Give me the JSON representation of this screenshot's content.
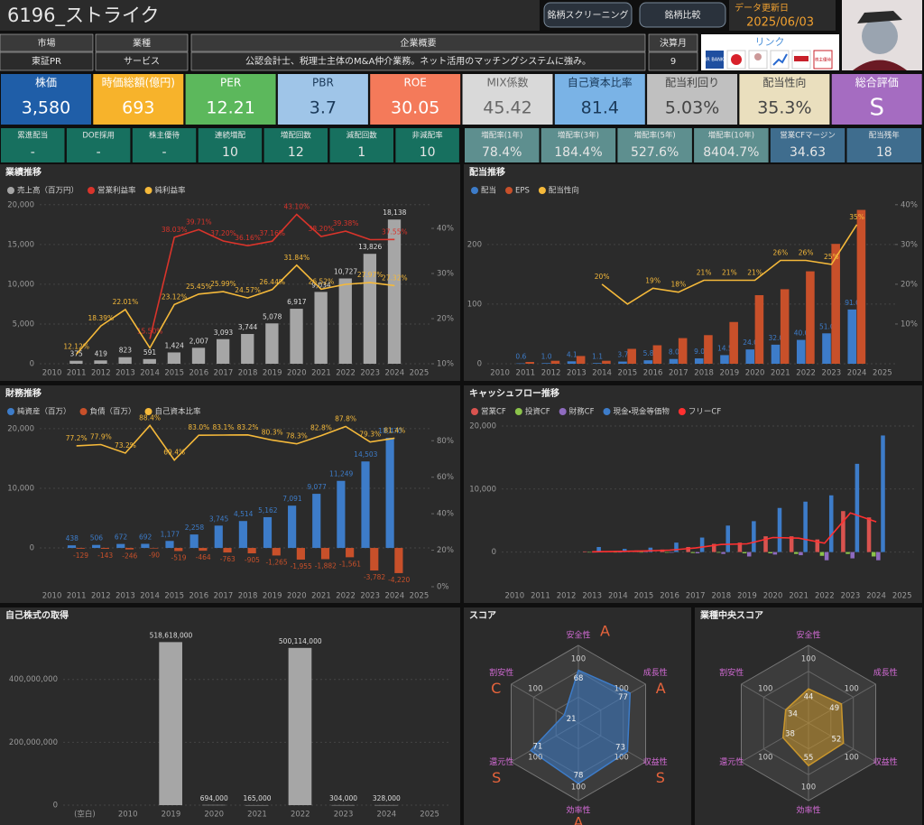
{
  "header": {
    "title": "6196_ストライク",
    "buttons": [
      "銘柄スクリーニング",
      "銘柄比較"
    ],
    "update_label": "データ更新日",
    "update_date": "2025/06/03"
  },
  "info": [
    {
      "label": "市場",
      "value": "東証PR"
    },
    {
      "label": "業種",
      "value": "サービス"
    },
    {
      "label": "企業概要",
      "value": "公認会計士、税理士主体のM&A仲介業務。ネット活用のマッチングシステムに強み。"
    },
    {
      "label": "決算月",
      "value": "9"
    }
  ],
  "links": {
    "label": "リンク",
    "icons": [
      "IR BANK",
      "株主優待"
    ]
  },
  "kpis": [
    {
      "label": "株価",
      "value": "3,580",
      "color": "#1f5ea8",
      "text": "#ffffff"
    },
    {
      "label": "時価総額(億円)",
      "value": "693",
      "color": "#f7b32b",
      "text": "#ffffff"
    },
    {
      "label": "PER",
      "value": "12.21",
      "color": "#5cb85c",
      "text": "#ffffff"
    },
    {
      "label": "PBR",
      "value": "3.7",
      "color": "#9fc5e8",
      "text": "#1b3a5a"
    },
    {
      "label": "ROE",
      "value": "30.05",
      "color": "#f47a5a",
      "text": "#ffffff"
    },
    {
      "label": "MIX係数",
      "value": "45.42",
      "color": "#d9d9d9",
      "text": "#666666"
    },
    {
      "label": "自己資本比率",
      "value": "81.4",
      "color": "#7ab3e6",
      "text": "#1b3a5a"
    },
    {
      "label": "配当利回り",
      "value": "5.03%",
      "color": "#c0c0c0",
      "text": "#444444"
    },
    {
      "label": "配当性向",
      "value": "35.3%",
      "color": "#eadfbe",
      "text": "#444444"
    },
    {
      "label": "総合評価",
      "value": "S",
      "color": "#a56cc1",
      "text": "#ffffff"
    }
  ],
  "stats": [
    {
      "label": "累進配当",
      "value": "-",
      "color": "#17705f"
    },
    {
      "label": "DOE採用",
      "value": "-",
      "color": "#17705f"
    },
    {
      "label": "株主優待",
      "value": "-",
      "color": "#17705f"
    },
    {
      "label": "連続増配",
      "value": "10",
      "color": "#17705f"
    },
    {
      "label": "増配回数",
      "value": "12",
      "color": "#17705f"
    },
    {
      "label": "減配回数",
      "value": "1",
      "color": "#17705f"
    },
    {
      "label": "非減配率",
      "value": "10",
      "color": "#17705f"
    },
    {
      "label": "増配率(1年)",
      "value": "78.4%",
      "color": "#5e8f8f"
    },
    {
      "label": "増配率(3年)",
      "value": "184.4%",
      "color": "#5e8f8f"
    },
    {
      "label": "増配率(5年)",
      "value": "527.6%",
      "color": "#5e8f8f"
    },
    {
      "label": "増配率(10年)",
      "value": "8404.7%",
      "color": "#5e8f8f"
    },
    {
      "label": "営業CFマージン",
      "value": "34.63",
      "color": "#3f6d8e"
    },
    {
      "label": "配当残年",
      "value": "18",
      "color": "#3f6d8e"
    }
  ],
  "chart_data": [
    {
      "type": "combo",
      "title": "業績推移",
      "categories": [
        "2010",
        "2011",
        "2012",
        "2013",
        "2014",
        "2015",
        "2016",
        "2017",
        "2018",
        "2019",
        "2020",
        "2021",
        "2022",
        "2023",
        "2024",
        "2025"
      ],
      "series": [
        {
          "name": "売上高（百万円）",
          "color": "#a6a6a6",
          "kind": "bar",
          "values": [
            null,
            375,
            419,
            823,
            591,
            1424,
            2007,
            3093,
            3744,
            5078,
            6917,
            9034,
            10727,
            13826,
            18138,
            null
          ],
          "value_labels": [
            null,
            "375",
            "419",
            "823",
            "591",
            "1,424",
            "2,007",
            "3,093",
            "3,744",
            "5,078",
            "6,917",
            "9,034",
            "10,727",
            "13,826",
            "18,138",
            null
          ]
        },
        {
          "name": "営業利益率",
          "color": "#d9342b",
          "kind": "line",
          "axis": "y2",
          "values": [
            null,
            null,
            null,
            null,
            15.5,
            38.03,
            39.71,
            37.2,
            36.16,
            37.16,
            43.1,
            38.2,
            39.38,
            37.5,
            37.55,
            null
          ],
          "value_labels": [
            null,
            null,
            null,
            null,
            "15.50%",
            "38.03%",
            "39.71%",
            "37.20%",
            "36.16%",
            "37.16%",
            "43.10%",
            "38.20%",
            "39.38%",
            null,
            "37.55%",
            null
          ]
        },
        {
          "name": "純利益率",
          "color": "#f5b93a",
          "kind": "line",
          "axis": "y2",
          "values": [
            null,
            12.12,
            18.39,
            22.01,
            13.5,
            23.12,
            25.45,
            25.99,
            24.57,
            26.44,
            31.84,
            26.52,
            27.6,
            27.97,
            27.32,
            null
          ],
          "value_labels": [
            null,
            "12.12%",
            "18.39%",
            "22.01%",
            null,
            "23.12%",
            "25.45%",
            "25.99%",
            "24.57%",
            "26.44%",
            "31.84%",
            "26.52%",
            null,
            "27.97%",
            "27.32%",
            null
          ]
        }
      ],
      "ylim": [
        0,
        21000
      ],
      "yticks": [
        0,
        {
          "value": 5000,
          "label": "5,000"
        },
        {
          "value": 10000,
          "label": "10,000"
        },
        {
          "value": 15000,
          "label": "15,000"
        },
        {
          "value": 20000,
          "label": "20,000"
        }
      ],
      "y2lim": [
        10,
        47
      ],
      "y2ticks": [
        {
          "value": 10,
          "label": "10%"
        },
        {
          "value": 20,
          "label": "20%"
        },
        {
          "value": 30,
          "label": "30%"
        },
        {
          "value": 40,
          "label": "40%"
        }
      ],
      "grid": true
    },
    {
      "type": "combo",
      "title": "配当推移",
      "categories": [
        "2010",
        "2011",
        "2012",
        "2013",
        "2014",
        "2015",
        "2016",
        "2017",
        "2018",
        "2019",
        "2020",
        "2021",
        "2022",
        "2023",
        "2024",
        "2025"
      ],
      "series": [
        {
          "name": "配当",
          "color": "#3d7cc9",
          "kind": "bar",
          "values": [
            null,
            0.6,
            1.0,
            4.1,
            1.1,
            3.7,
            5.8,
            8.0,
            9.0,
            14.5,
            24.0,
            32.0,
            40.0,
            51.0,
            91.0,
            null
          ],
          "value_labels": [
            null,
            "0.6",
            "1.0",
            "4.1",
            "1.1",
            "3.7",
            "5.8",
            "8.0",
            "9.0",
            "14.5",
            "24.0",
            "32.0",
            "40.0",
            "51.0",
            "91.0",
            null
          ]
        },
        {
          "name": "EPS",
          "color": "#c8502a",
          "kind": "bar",
          "values": [
            null,
            3,
            5,
            13,
            5,
            25,
            31,
            43,
            48,
            70,
            115,
            125,
            155,
            201,
            258,
            null
          ]
        },
        {
          "name": "配当性向",
          "color": "#f5b93a",
          "kind": "line",
          "axis": "y2",
          "values": [
            null,
            null,
            null,
            null,
            20,
            15,
            19,
            18,
            21,
            21,
            21,
            26,
            26,
            25,
            35,
            null
          ],
          "value_labels": [
            null,
            null,
            null,
            null,
            "20%",
            null,
            "19%",
            "18%",
            "21%",
            "21%",
            "21%",
            "26%",
            "26%",
            "25%",
            "35%",
            null
          ]
        }
      ],
      "ylim": [
        0,
        280
      ],
      "yticks": [
        0,
        100,
        200
      ],
      "y2lim": [
        0,
        42
      ],
      "y2ticks": [
        {
          "value": 10,
          "label": "10%"
        },
        {
          "value": 20,
          "label": "20%"
        },
        {
          "value": 30,
          "label": "30%"
        },
        {
          "value": 40,
          "label": "40%"
        }
      ],
      "grid": true
    },
    {
      "type": "combo",
      "title": "財務推移",
      "categories": [
        "2010",
        "2011",
        "2012",
        "2013",
        "2014",
        "2015",
        "2016",
        "2017",
        "2018",
        "2019",
        "2020",
        "2021",
        "2022",
        "2023",
        "2024",
        "2025"
      ],
      "series": [
        {
          "name": "純資産（百万）",
          "color": "#3d7cc9",
          "kind": "bar",
          "values": [
            null,
            438,
            506,
            672,
            692,
            1177,
            2258,
            3745,
            4514,
            5162,
            7091,
            9077,
            11249,
            14503,
            18470,
            null
          ],
          "value_labels": [
            null,
            "438",
            "506",
            "672",
            "692",
            "1,177",
            "2,258",
            "3,745",
            "4,514",
            "5,162",
            "7,091",
            "9,077",
            "11,249",
            "14,503",
            "18,470",
            null
          ]
        },
        {
          "name": "負債（百万）",
          "color": "#c8502a",
          "kind": "bar",
          "values": [
            null,
            -129,
            -143,
            -246,
            -90,
            -519,
            -464,
            -763,
            -905,
            -1265,
            -1955,
            -1882,
            -1561,
            -3782,
            -4220,
            null
          ],
          "value_labels": [
            null,
            "-129",
            "-143",
            "-246",
            "-90",
            "-519",
            "-464",
            "-763",
            "-905",
            "-1,265",
            "-1,955",
            "-1,882",
            "-1,561",
            "-3,782",
            "-4,220",
            null
          ]
        },
        {
          "name": "自己資本比率",
          "color": "#f5b93a",
          "kind": "line",
          "axis": "y2",
          "values": [
            null,
            77.2,
            77.9,
            73.2,
            88.4,
            69.4,
            83.0,
            83.1,
            83.2,
            80.3,
            78.3,
            82.8,
            87.8,
            79.3,
            81.4,
            null
          ],
          "value_labels": [
            null,
            "77.2%",
            "77.9%",
            "73.2%",
            "88.4%",
            "69.4%",
            "83.0%",
            "83.1%",
            "83.2%",
            "80.3%",
            "78.3%",
            "82.8%",
            "87.8%",
            "79.3%",
            "81.4%",
            null
          ]
        }
      ],
      "ylim": [
        -6500,
        21500
      ],
      "yticks": [
        0,
        {
          "value": 10000,
          "label": "10,000"
        },
        {
          "value": 20000,
          "label": "20,000"
        }
      ],
      "y2lim": [
        0,
        91.5
      ],
      "y2ticks": [
        {
          "value": 0,
          "label": "0%"
        },
        {
          "value": 20,
          "label": "20%"
        },
        {
          "value": 40,
          "label": "40%"
        },
        {
          "value": 60,
          "label": "60%"
        },
        {
          "value": 80,
          "label": "80%"
        }
      ],
      "grid": true
    },
    {
      "type": "combo",
      "title": "キャッシュフロー推移",
      "categories": [
        "2010",
        "2011",
        "2012",
        "2013",
        "2014",
        "2015",
        "2016",
        "2017",
        "2018",
        "2019",
        "2020",
        "2021",
        "2022",
        "2023",
        "2024",
        "2025"
      ],
      "series": [
        {
          "name": "営業CF",
          "color": "#d9534f",
          "kind": "bar",
          "values": [
            null,
            null,
            null,
            100,
            150,
            250,
            400,
            800,
            1300,
            1500,
            2500,
            2500,
            2000,
            6500,
            5500,
            null
          ]
        },
        {
          "name": "投資CF",
          "color": "#8bc34a",
          "kind": "bar",
          "values": [
            null,
            null,
            null,
            -50,
            -50,
            -80,
            -100,
            -150,
            -100,
            -200,
            -200,
            -300,
            -600,
            -300,
            -700,
            null
          ]
        },
        {
          "name": "財務CF",
          "color": "#8e6bbf",
          "kind": "bar",
          "values": [
            null,
            null,
            null,
            -50,
            -30,
            -60,
            -100,
            -200,
            -300,
            -700,
            -400,
            -500,
            -1300,
            -1000,
            -1300,
            null
          ]
        },
        {
          "name": "現金・現金等価物",
          "color": "#3d7cc9",
          "kind": "bar",
          "values": [
            null,
            null,
            null,
            800,
            500,
            700,
            1500,
            2300,
            4200,
            4900,
            7000,
            8000,
            9000,
            14000,
            18500,
            null
          ]
        },
        {
          "name": "フリーCF",
          "color": "#ff3030",
          "kind": "line",
          "values": [
            null,
            null,
            null,
            50,
            100,
            170,
            300,
            650,
            1200,
            1300,
            2300,
            2200,
            1400,
            6200,
            4800,
            null
          ]
        }
      ],
      "ylim": [
        -5500,
        21000
      ],
      "yticks": [
        0,
        {
          "value": 10000,
          "label": "10,000"
        },
        {
          "value": 20000,
          "label": "20,000"
        }
      ],
      "grid": true
    },
    {
      "type": "combo",
      "title": "自己株式の取得",
      "categories": [
        "(空白)",
        "2010",
        "2019",
        "2020",
        "2021",
        "2022",
        "2023",
        "2024",
        "2025"
      ],
      "series": [
        {
          "name": "自己株式の取得",
          "color": "#a6a6a6",
          "kind": "bar",
          "legend": false,
          "values": [
            null,
            null,
            518618000,
            694000,
            165000,
            500114000,
            304000,
            328000,
            null
          ],
          "value_labels": [
            null,
            null,
            "518,618,000",
            "694,000",
            "165,000",
            "500,114,000",
            "304,000",
            "328,000",
            null
          ]
        }
      ],
      "ylim": [
        0,
        580000000
      ],
      "yticks": [
        0,
        {
          "value": 200000000,
          "label": "200,000,000"
        },
        {
          "value": 400000000,
          "label": "400,000,000"
        }
      ],
      "grid": true
    },
    {
      "type": "radar",
      "title": "スコア",
      "axes": [
        "安全性",
        "成長性",
        "収益性",
        "効率性",
        "還元性",
        "割安性"
      ],
      "values": [
        68,
        77,
        73,
        78,
        71,
        21
      ],
      "grades": [
        "A",
        "A",
        "S",
        "A",
        "S",
        "C"
      ],
      "rlim": [
        0,
        100
      ],
      "rticks": [
        100
      ],
      "color": "#3d7cc9"
    },
    {
      "type": "radar",
      "title": "業種中央スコア",
      "axes": [
        "安全性",
        "成長性",
        "収益性",
        "効率性",
        "還元性",
        "割安性"
      ],
      "values": [
        44,
        49,
        52,
        55,
        38,
        34
      ],
      "rlim": [
        0,
        100
      ],
      "rticks": [
        100
      ],
      "color": "#c9962c"
    }
  ]
}
